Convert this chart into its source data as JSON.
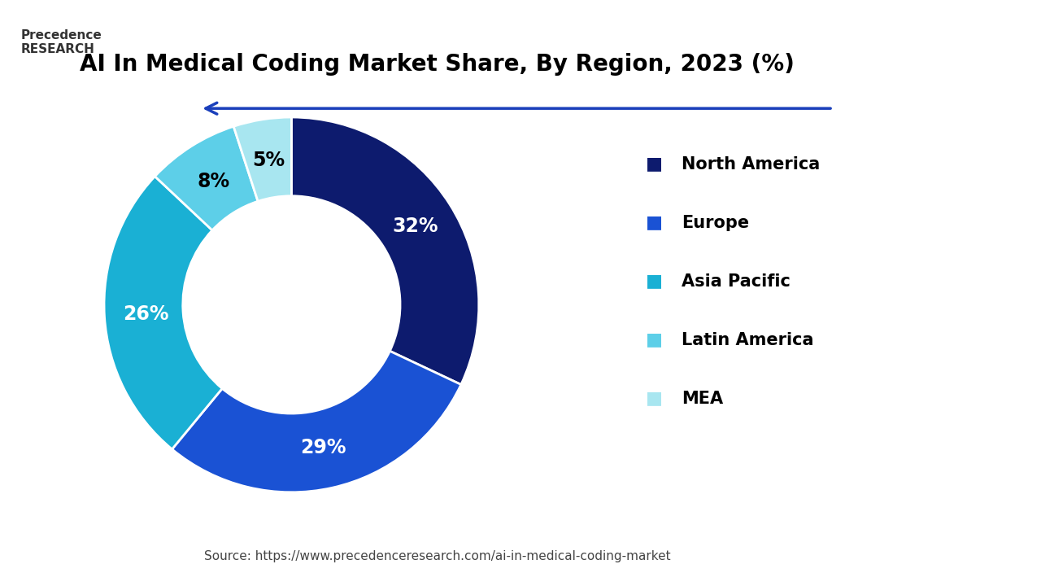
{
  "title": "AI In Medical Coding Market Share, By Region, 2023 (%)",
  "labels": [
    "North America",
    "Europe",
    "Asia Pacific",
    "Latin America",
    "MEA"
  ],
  "values": [
    32,
    29,
    26,
    8,
    5
  ],
  "colors": [
    "#0d1b6e",
    "#1a52d4",
    "#1ab0d4",
    "#5dcfe8",
    "#a8e6f0"
  ],
  "pct_labels": [
    "32%",
    "29%",
    "26%",
    "8%",
    "5%"
  ],
  "pct_colors": [
    "white",
    "white",
    "white",
    "black",
    "black"
  ],
  "source": "Source: https://www.precedenceresearch.com/ai-in-medical-coding-market",
  "background_color": "#ffffff",
  "arrow_color": "#1a3fbb",
  "line_color": "#1a3fbb",
  "title_fontsize": 20,
  "legend_fontsize": 15,
  "pct_fontsize": 17,
  "source_fontsize": 11
}
